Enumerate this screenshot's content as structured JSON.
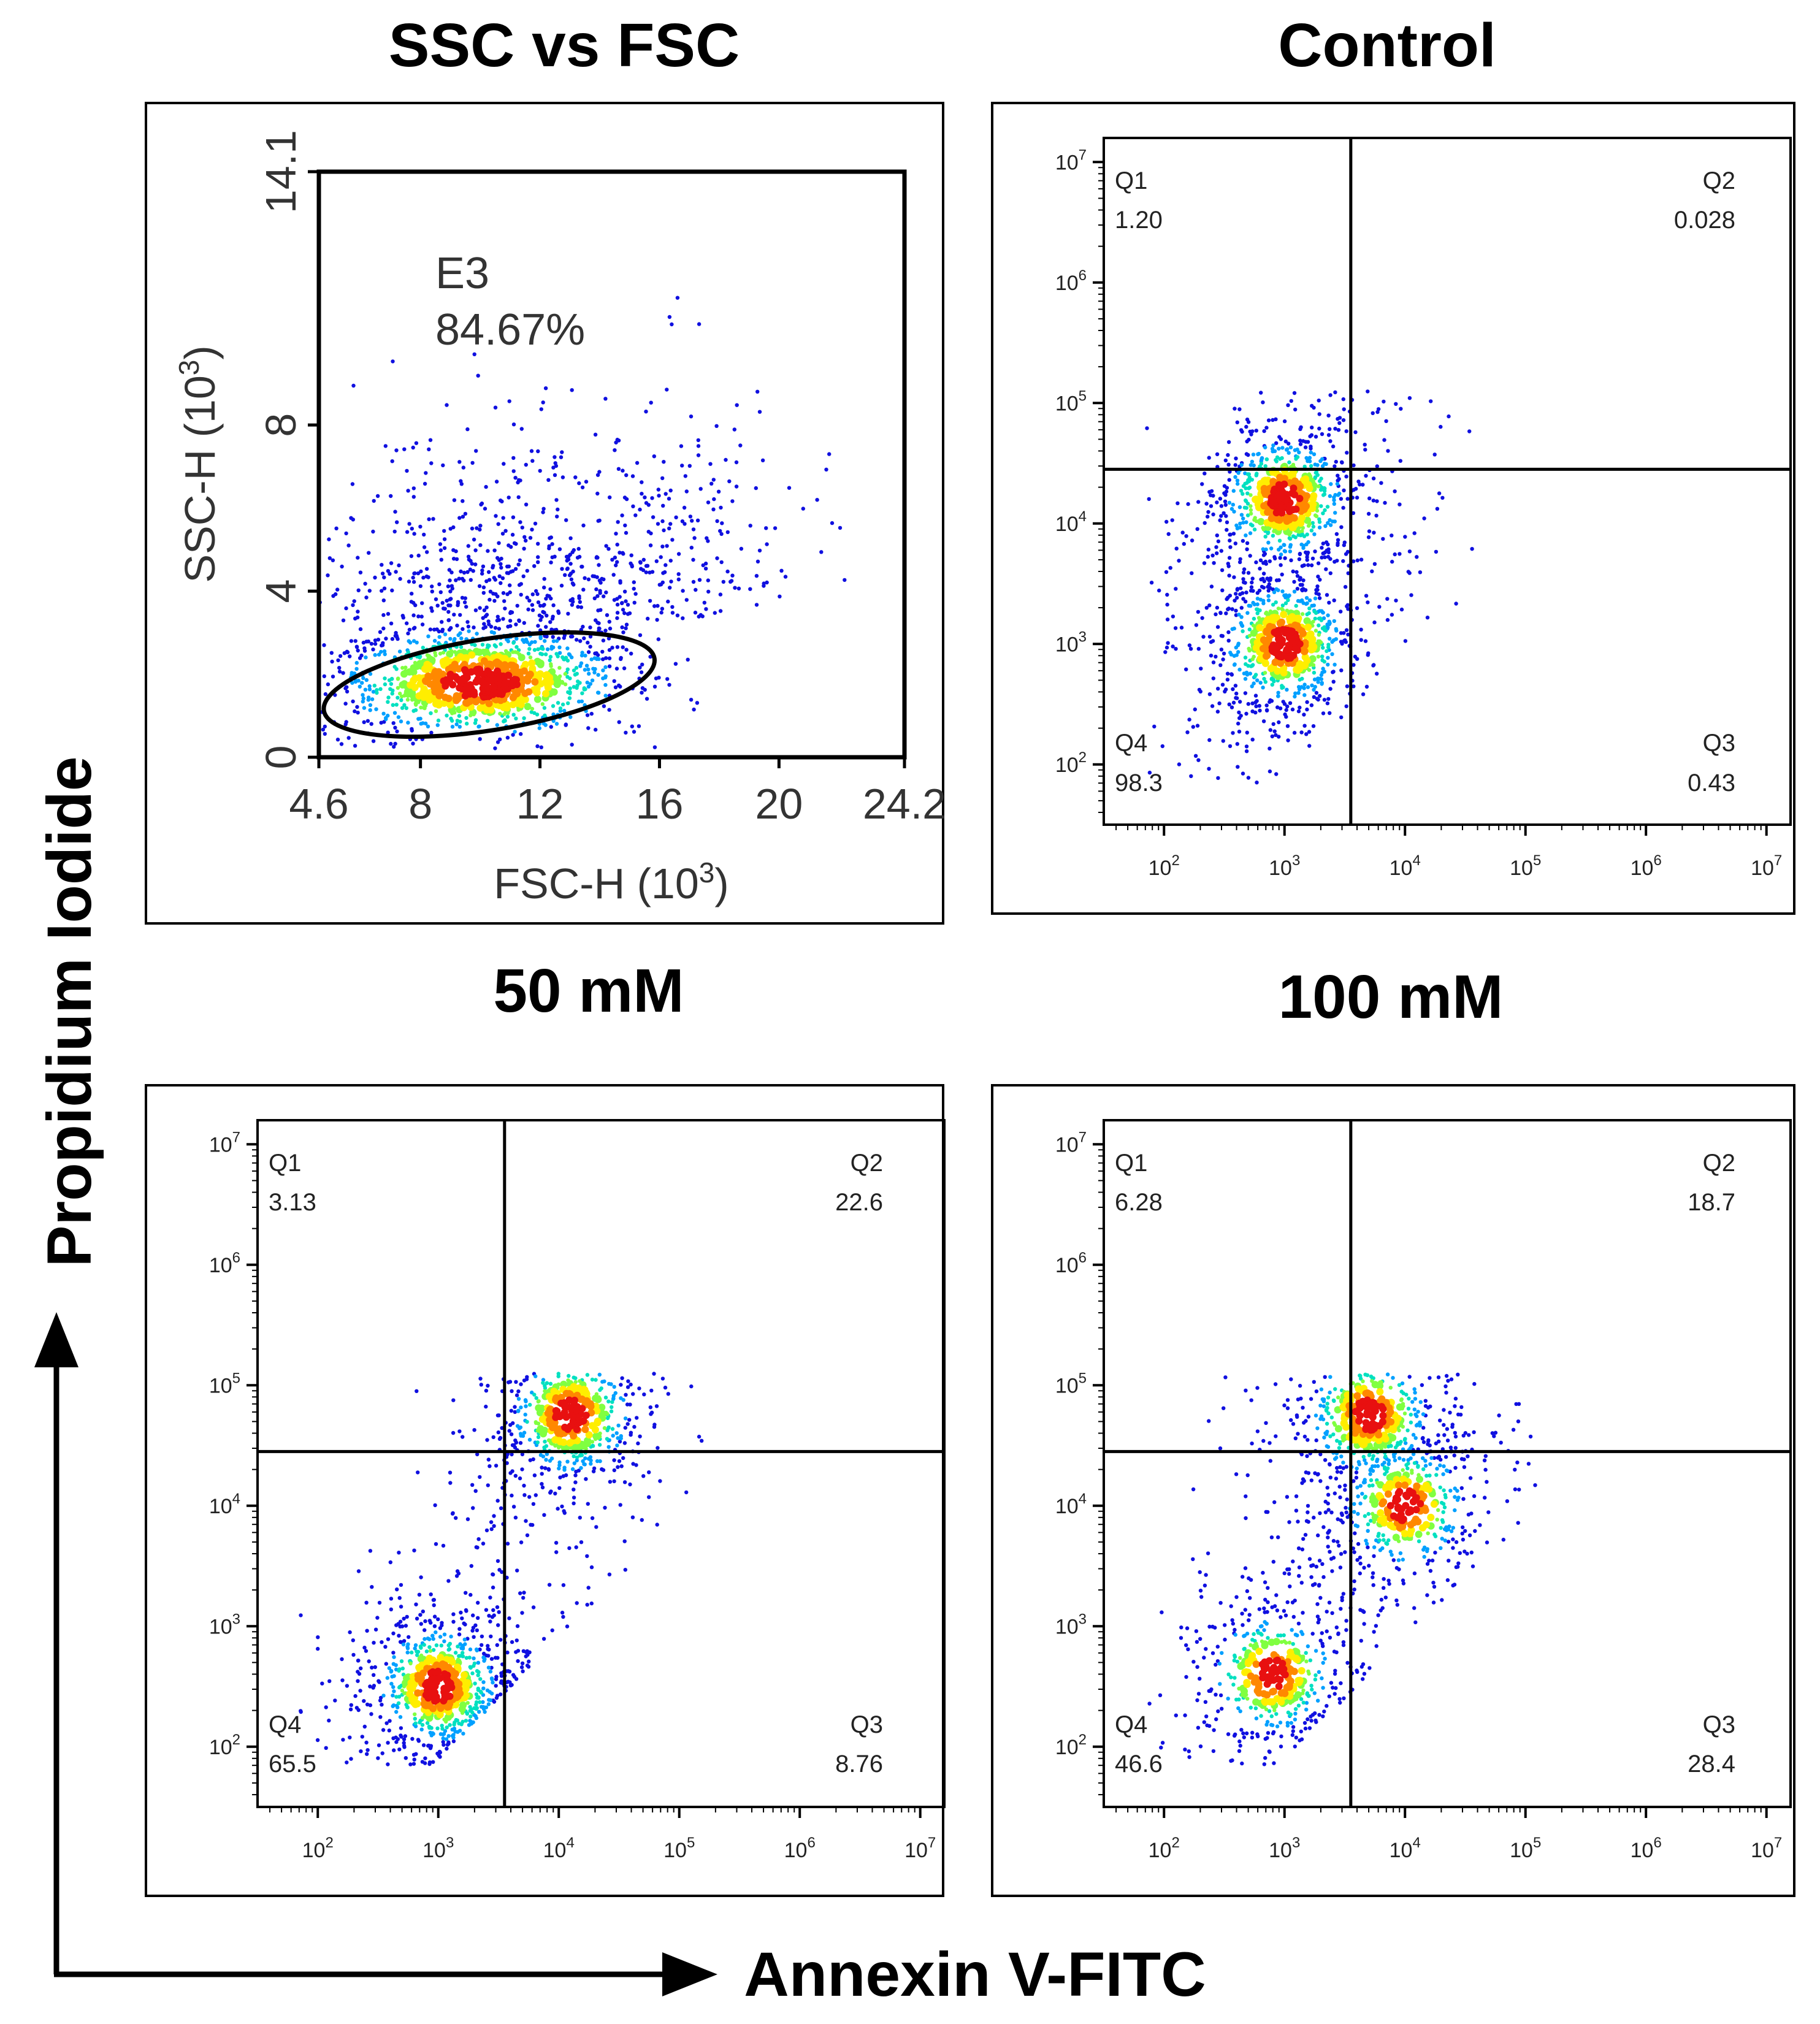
{
  "figure": {
    "y_axis_label": "Propidium Iodide",
    "x_axis_label": "Annexin V-FITC"
  },
  "colors": {
    "density": [
      "#1010e0",
      "#00a0ff",
      "#00e0c0",
      "#80ff40",
      "#ffee00",
      "#ff8800",
      "#e81010"
    ],
    "axis": "#000000"
  },
  "chart_data": [
    {
      "type": "scatter",
      "panel": "scatter",
      "title": "SSC vs FSC",
      "xlabel_main": "FSC-H",
      "xlabel_unit": "(10",
      "xlabel_exp": "3",
      "xlabel_close": ")",
      "ylabel_main": "SSC-H",
      "ylabel_unit": "(10",
      "ylabel_exp": "3",
      "ylabel_close": ")",
      "xlim": [
        4.6,
        24.2
      ],
      "ylim": [
        0,
        14.1
      ],
      "xticks": [
        "4.6",
        "8",
        "12",
        "16",
        "20",
        "24.2"
      ],
      "yticks": [
        "0",
        "4",
        "8",
        "14.1"
      ],
      "gate": {
        "name": "E3",
        "percent": "84.67%",
        "center": [
          10.3,
          1.75
        ],
        "semi_axes_x": 5.6,
        "semi_axes_y": 1.1,
        "angle_deg": -9
      },
      "population_peak": [
        10.0,
        1.8
      ]
    },
    {
      "type": "scatter",
      "panel": "quad",
      "title": "Control",
      "axis_scale": "log",
      "range_log10": [
        1.5,
        7.2
      ],
      "tick_base": "10",
      "tick_exps": [
        "2",
        "3",
        "4",
        "5",
        "6",
        "7"
      ],
      "gate_x_log10": 3.55,
      "gate_y_log10": 4.45,
      "quadrants": {
        "Q1": {
          "label": "Q1",
          "value": "1.20"
        },
        "Q2": {
          "label": "Q2",
          "value": "0.028"
        },
        "Q3": {
          "label": "Q3",
          "value": "0.43"
        },
        "Q4": {
          "label": "Q4",
          "value": "98.3"
        }
      },
      "hotspots_log10": [
        [
          3.0,
          4.2
        ],
        [
          3.0,
          3.0
        ]
      ]
    },
    {
      "type": "scatter",
      "panel": "quad",
      "title": "50 mM",
      "axis_scale": "log",
      "range_log10": [
        1.5,
        7.2
      ],
      "tick_base": "10",
      "tick_exps": [
        "2",
        "3",
        "4",
        "5",
        "6",
        "7"
      ],
      "gate_x_log10": 3.55,
      "gate_y_log10": 4.45,
      "quadrants": {
        "Q1": {
          "label": "Q1",
          "value": "3.13"
        },
        "Q2": {
          "label": "Q2",
          "value": "22.6"
        },
        "Q3": {
          "label": "Q3",
          "value": "8.76"
        },
        "Q4": {
          "label": "Q4",
          "value": "65.5"
        }
      },
      "hotspots_log10": [
        [
          3.0,
          2.5
        ],
        [
          4.1,
          4.75
        ]
      ]
    },
    {
      "type": "scatter",
      "panel": "quad",
      "title": "100 mM",
      "axis_scale": "log",
      "range_log10": [
        1.5,
        7.2
      ],
      "tick_base": "10",
      "tick_exps": [
        "2",
        "3",
        "4",
        "5",
        "6",
        "7"
      ],
      "gate_x_log10": 3.55,
      "gate_y_log10": 4.45,
      "quadrants": {
        "Q1": {
          "label": "Q1",
          "value": "6.28"
        },
        "Q2": {
          "label": "Q2",
          "value": "18.7"
        },
        "Q3": {
          "label": "Q3",
          "value": "28.4"
        },
        "Q4": {
          "label": "Q4",
          "value": "46.6"
        }
      },
      "hotspots_log10": [
        [
          2.9,
          2.6
        ],
        [
          4.0,
          4.0
        ],
        [
          3.7,
          4.75
        ]
      ]
    }
  ]
}
